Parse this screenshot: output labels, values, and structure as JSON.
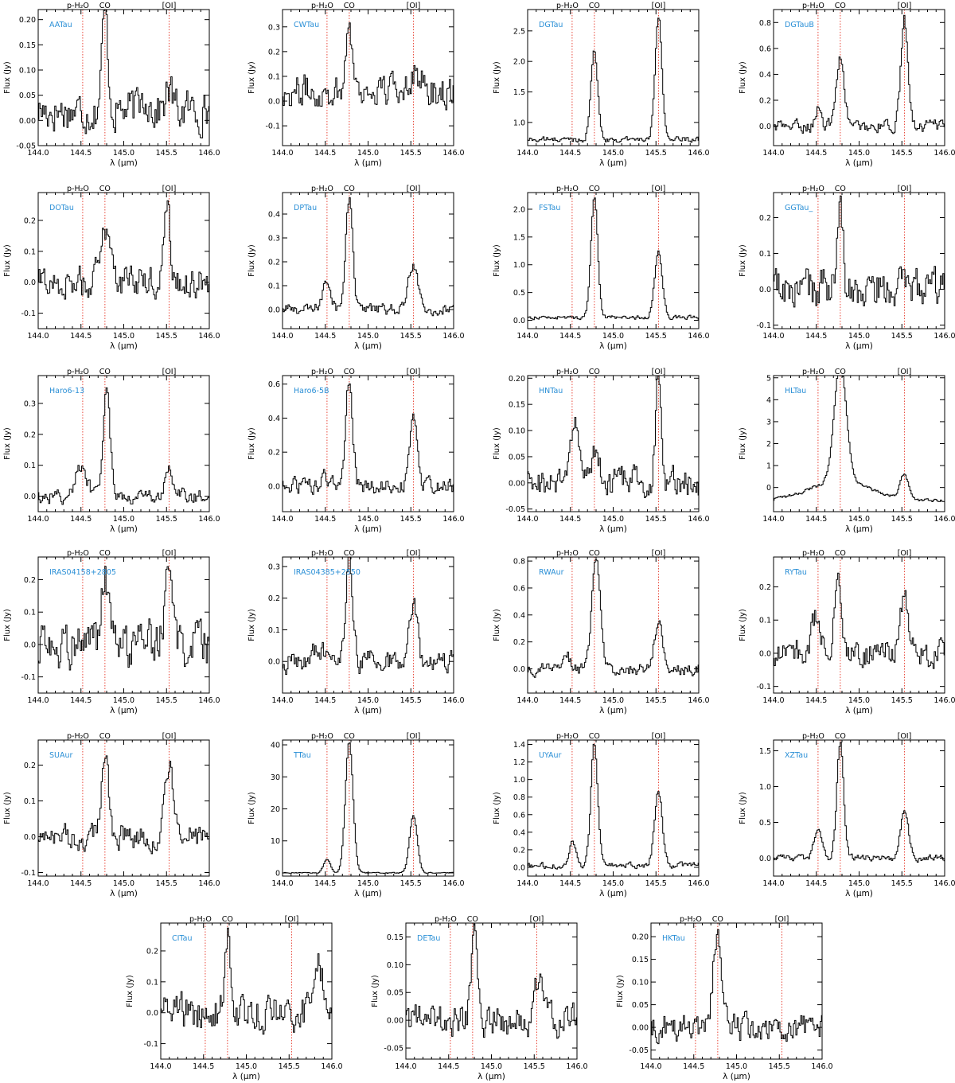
{
  "figure": {
    "line_labels": [
      {
        "id": "ph2o",
        "text": "p-H₂O",
        "x": 144.52
      },
      {
        "id": "co",
        "text": "CO",
        "x": 144.78
      },
      {
        "id": "oi",
        "text": "[OI]",
        "x": 145.53
      }
    ],
    "x_axis_label": "λ (μm)",
    "y_axis_label": "Flux (Jy)",
    "x_ticks": [
      "144.0",
      "144.5",
      "145.0",
      "145.5",
      "146.0"
    ],
    "colors": {
      "spectrum": "#000000",
      "line_marker": "#e8483a",
      "star_label": "#2a8fd6",
      "frame": "#000000"
    }
  },
  "chart_data": [
    {
      "type": "line",
      "name": "AATau",
      "xlim": [
        144.0,
        146.0
      ],
      "ylim": [
        -0.05,
        0.22
      ],
      "yticks": [
        -0.05,
        0.0,
        0.05,
        0.1,
        0.15,
        0.2
      ],
      "ytick_labels": [
        "-0.05",
        "0.00",
        "0.05",
        "0.10",
        "0.15",
        "0.20"
      ],
      "baseline": 0.02,
      "noise": 0.035,
      "peaks": [
        {
          "x": 144.78,
          "amp": 0.19,
          "w": 0.035
        },
        {
          "x": 145.53,
          "amp": 0.04,
          "w": 0.04
        },
        {
          "x": 145.25,
          "amp": 0.03,
          "w": 0.05
        }
      ]
    },
    {
      "type": "line",
      "name": "CWTau",
      "xlim": [
        144.0,
        146.0
      ],
      "ylim": [
        -0.18,
        0.37
      ],
      "yticks": [
        -0.1,
        0.0,
        0.1,
        0.2,
        0.3
      ],
      "ytick_labels": [
        "-0.1",
        "0.0",
        "0.1",
        "0.2",
        "0.3"
      ],
      "baseline": 0.04,
      "noise": 0.06,
      "peaks": [
        {
          "x": 144.78,
          "amp": 0.3,
          "w": 0.035
        },
        {
          "x": 145.53,
          "amp": 0.08,
          "w": 0.08
        }
      ]
    },
    {
      "type": "line",
      "name": "DGTau",
      "xlim": [
        144.0,
        146.0
      ],
      "ylim": [
        0.62,
        2.85
      ],
      "yticks": [
        1.0,
        1.5,
        2.0,
        2.5
      ],
      "ytick_labels": [
        "1.0",
        "1.5",
        "2.0",
        "2.5"
      ],
      "baseline": 0.72,
      "noise": 0.04,
      "peaks": [
        {
          "x": 144.78,
          "amp": 1.45,
          "w": 0.04
        },
        {
          "x": 145.53,
          "amp": 2.05,
          "w": 0.04
        }
      ]
    },
    {
      "type": "line",
      "name": "DGTauB",
      "xlim": [
        144.0,
        146.0
      ],
      "ylim": [
        -0.15,
        0.9
      ],
      "yticks": [
        0.0,
        0.2,
        0.4,
        0.6,
        0.8
      ],
      "ytick_labels": [
        "0.0",
        "0.2",
        "0.4",
        "0.6",
        "0.8"
      ],
      "baseline": 0.0,
      "noise": 0.04,
      "peaks": [
        {
          "x": 144.52,
          "amp": 0.15,
          "w": 0.03
        },
        {
          "x": 144.78,
          "amp": 0.55,
          "w": 0.045
        },
        {
          "x": 145.53,
          "amp": 0.82,
          "w": 0.04
        }
      ]
    },
    {
      "type": "line",
      "name": "DOTau",
      "xlim": [
        144.0,
        146.0
      ],
      "ylim": [
        -0.15,
        0.29
      ],
      "yticks": [
        -0.1,
        0.0,
        0.1,
        0.2
      ],
      "ytick_labels": [
        "-0.1",
        "0.0",
        "0.1",
        "0.2"
      ],
      "baseline": 0.0,
      "noise": 0.045,
      "peaks": [
        {
          "x": 144.8,
          "amp": 0.18,
          "w": 0.06
        },
        {
          "x": 145.5,
          "amp": 0.26,
          "w": 0.04
        }
      ]
    },
    {
      "type": "line",
      "name": "DPTau",
      "xlim": [
        144.0,
        146.0
      ],
      "ylim": [
        -0.08,
        0.49
      ],
      "yticks": [
        0.0,
        0.1,
        0.2,
        0.3,
        0.4
      ],
      "ytick_labels": [
        "0.0",
        "0.1",
        "0.2",
        "0.3",
        "0.4"
      ],
      "baseline": 0.0,
      "noise": 0.02,
      "peaks": [
        {
          "x": 144.52,
          "amp": 0.12,
          "w": 0.05
        },
        {
          "x": 144.78,
          "amp": 0.46,
          "w": 0.04
        },
        {
          "x": 145.53,
          "amp": 0.18,
          "w": 0.06
        }
      ]
    },
    {
      "type": "line",
      "name": "FSTau",
      "xlim": [
        144.0,
        146.0
      ],
      "ylim": [
        -0.15,
        2.3
      ],
      "yticks": [
        0.0,
        0.5,
        1.0,
        1.5,
        2.0
      ],
      "ytick_labels": [
        "0.0",
        "0.5",
        "1.0",
        "1.5",
        "2.0"
      ],
      "baseline": 0.05,
      "noise": 0.03,
      "peaks": [
        {
          "x": 144.78,
          "amp": 2.15,
          "w": 0.04
        },
        {
          "x": 145.53,
          "amp": 1.18,
          "w": 0.045
        }
      ]
    },
    {
      "type": "line",
      "name": "GGTau_",
      "xlim": [
        144.0,
        146.0
      ],
      "ylim": [
        -0.11,
        0.27
      ],
      "yticks": [
        -0.1,
        0.0,
        0.1,
        0.2
      ],
      "ytick_labels": [
        "-0.1",
        "0.0",
        "0.1",
        "0.2"
      ],
      "baseline": 0.0,
      "noise": 0.05,
      "peaks": [
        {
          "x": 144.78,
          "amp": 0.25,
          "w": 0.03
        }
      ]
    },
    {
      "type": "line",
      "name": "Haro6-13",
      "xlim": [
        144.0,
        146.0
      ],
      "ylim": [
        -0.05,
        0.39
      ],
      "yticks": [
        0.0,
        0.1,
        0.2,
        0.3
      ],
      "ytick_labels": [
        "0.0",
        "0.1",
        "0.2",
        "0.3"
      ],
      "baseline": 0.0,
      "noise": 0.02,
      "peaks": [
        {
          "x": 144.5,
          "amp": 0.09,
          "w": 0.07
        },
        {
          "x": 144.8,
          "amp": 0.36,
          "w": 0.04
        },
        {
          "x": 145.53,
          "amp": 0.09,
          "w": 0.04
        }
      ]
    },
    {
      "type": "line",
      "name": "Haro6-5B",
      "xlim": [
        144.0,
        146.0
      ],
      "ylim": [
        -0.15,
        0.65
      ],
      "yticks": [
        0.0,
        0.2,
        0.4,
        0.6
      ],
      "ytick_labels": [
        "0.0",
        "0.2",
        "0.4",
        "0.6"
      ],
      "baseline": 0.0,
      "noise": 0.04,
      "peaks": [
        {
          "x": 144.52,
          "amp": 0.05,
          "w": 0.05
        },
        {
          "x": 144.78,
          "amp": 0.63,
          "w": 0.04
        },
        {
          "x": 145.53,
          "amp": 0.4,
          "w": 0.04
        }
      ]
    },
    {
      "type": "line",
      "name": "HNTau",
      "xlim": [
        144.0,
        146.0
      ],
      "ylim": [
        -0.055,
        0.205
      ],
      "yticks": [
        -0.05,
        0.0,
        0.05,
        0.1,
        0.15,
        0.2
      ],
      "ytick_labels": [
        "-0.05",
        "0.00",
        "0.05",
        "0.10",
        "0.15",
        "0.20"
      ],
      "baseline": 0.0,
      "noise": 0.025,
      "peaks": [
        {
          "x": 144.55,
          "amp": 0.12,
          "w": 0.04
        },
        {
          "x": 144.78,
          "amp": 0.06,
          "w": 0.05
        },
        {
          "x": 145.53,
          "amp": 0.19,
          "w": 0.035
        }
      ]
    },
    {
      "type": "line",
      "name": "HLTau",
      "xlim": [
        144.0,
        146.0
      ],
      "ylim": [
        -1.1,
        5.1
      ],
      "yticks": [
        0,
        1,
        2,
        3,
        4,
        5
      ],
      "ytick_labels": [
        "0",
        "1",
        "2",
        "3",
        "4",
        "5"
      ],
      "baseline": -0.6,
      "noise": 0.06,
      "peaks": [
        {
          "x": 144.78,
          "amp": 5.4,
          "w": 0.07
        },
        {
          "x": 144.78,
          "amp": 0.9,
          "w": 0.35
        },
        {
          "x": 145.53,
          "amp": 1.1,
          "w": 0.05
        }
      ]
    },
    {
      "type": "line",
      "name": "IRAS04158+2805",
      "xlim": [
        144.0,
        146.0
      ],
      "ylim": [
        -0.15,
        0.27
      ],
      "yticks": [
        -0.1,
        0.0,
        0.1,
        0.2
      ],
      "ytick_labels": [
        "-0.1",
        "0.0",
        "0.1",
        "0.2"
      ],
      "baseline": 0.0,
      "noise": 0.06,
      "peaks": [
        {
          "x": 144.78,
          "amp": 0.21,
          "w": 0.04
        },
        {
          "x": 145.53,
          "amp": 0.2,
          "w": 0.05
        }
      ]
    },
    {
      "type": "line",
      "name": "IRAS04385+2550",
      "xlim": [
        144.0,
        146.0
      ],
      "ylim": [
        -0.1,
        0.33
      ],
      "yticks": [
        0.0,
        0.1,
        0.2,
        0.3
      ],
      "ytick_labels": [
        "0.0",
        "0.1",
        "0.2",
        "0.3"
      ],
      "baseline": 0.0,
      "noise": 0.03,
      "peaks": [
        {
          "x": 144.42,
          "amp": 0.05,
          "w": 0.05
        },
        {
          "x": 144.78,
          "amp": 0.31,
          "w": 0.04
        },
        {
          "x": 145.53,
          "amp": 0.2,
          "w": 0.045
        }
      ]
    },
    {
      "type": "line",
      "name": "RWAur",
      "xlim": [
        144.0,
        146.0
      ],
      "ylim": [
        -0.18,
        0.83
      ],
      "yticks": [
        0.0,
        0.2,
        0.4,
        0.6,
        0.8
      ],
      "ytick_labels": [
        "0.0",
        "0.2",
        "0.4",
        "0.6",
        "0.8"
      ],
      "baseline": 0.0,
      "noise": 0.04,
      "peaks": [
        {
          "x": 144.45,
          "amp": 0.1,
          "w": 0.05
        },
        {
          "x": 144.8,
          "amp": 0.8,
          "w": 0.05
        },
        {
          "x": 145.53,
          "amp": 0.35,
          "w": 0.05
        }
      ]
    },
    {
      "type": "line",
      "name": "RYTau",
      "xlim": [
        144.0,
        146.0
      ],
      "ylim": [
        -0.12,
        0.29
      ],
      "yticks": [
        -0.1,
        0.0,
        0.1,
        0.2
      ],
      "ytick_labels": [
        "-0.1",
        "0.0",
        "0.1",
        "0.2"
      ],
      "baseline": 0.0,
      "noise": 0.035,
      "peaks": [
        {
          "x": 144.5,
          "amp": 0.12,
          "w": 0.05
        },
        {
          "x": 144.75,
          "amp": 0.26,
          "w": 0.035
        },
        {
          "x": 145.53,
          "amp": 0.17,
          "w": 0.04
        }
      ]
    },
    {
      "type": "line",
      "name": "SUAur",
      "xlim": [
        144.0,
        146.0
      ],
      "ylim": [
        -0.11,
        0.27
      ],
      "yticks": [
        -0.1,
        0.0,
        0.1,
        0.2
      ],
      "ytick_labels": [
        "-0.1",
        "0.0",
        "0.1",
        "0.2"
      ],
      "baseline": 0.0,
      "noise": 0.03,
      "peaks": [
        {
          "x": 144.78,
          "amp": 0.24,
          "w": 0.04
        },
        {
          "x": 145.53,
          "amp": 0.2,
          "w": 0.045
        }
      ]
    },
    {
      "type": "line",
      "name": "TTau",
      "xlim": [
        144.0,
        146.0
      ],
      "ylim": [
        -1.0,
        41.5
      ],
      "yticks": [
        0,
        10,
        20,
        30,
        40
      ],
      "ytick_labels": [
        "0",
        "10",
        "20",
        "30",
        "40"
      ],
      "baseline": 0.0,
      "noise": 0.15,
      "peaks": [
        {
          "x": 144.52,
          "amp": 4.2,
          "w": 0.04
        },
        {
          "x": 144.78,
          "amp": 41,
          "w": 0.045
        },
        {
          "x": 145.53,
          "amp": 18,
          "w": 0.045
        }
      ]
    },
    {
      "type": "line",
      "name": "UYAur",
      "xlim": [
        144.0,
        146.0
      ],
      "ylim": [
        -0.1,
        1.45
      ],
      "yticks": [
        0.0,
        0.2,
        0.4,
        0.6,
        0.8,
        1.0,
        1.2,
        1.4
      ],
      "ytick_labels": [
        "0.0",
        "0.2",
        "0.4",
        "0.6",
        "0.8",
        "1.0",
        "1.2",
        "1.4"
      ],
      "baseline": 0.02,
      "noise": 0.03,
      "peaks": [
        {
          "x": 144.52,
          "amp": 0.25,
          "w": 0.04
        },
        {
          "x": 144.78,
          "amp": 1.4,
          "w": 0.04
        },
        {
          "x": 145.53,
          "amp": 0.85,
          "w": 0.045
        }
      ]
    },
    {
      "type": "line",
      "name": "XZTau",
      "xlim": [
        144.0,
        146.0
      ],
      "ylim": [
        -0.25,
        1.65
      ],
      "yticks": [
        0.0,
        0.5,
        1.0,
        1.5
      ],
      "ytick_labels": [
        "0.0",
        "0.5",
        "1.0",
        "1.5"
      ],
      "baseline": 0.0,
      "noise": 0.04,
      "peaks": [
        {
          "x": 144.52,
          "amp": 0.45,
          "w": 0.045
        },
        {
          "x": 144.78,
          "amp": 1.6,
          "w": 0.04
        },
        {
          "x": 145.53,
          "amp": 0.7,
          "w": 0.045
        }
      ]
    },
    {
      "type": "line",
      "name": "CITau",
      "xlim": [
        144.0,
        146.0
      ],
      "ylim": [
        -0.15,
        0.29
      ],
      "yticks": [
        -0.1,
        0.0,
        0.1,
        0.2
      ],
      "ytick_labels": [
        "-0.1",
        "0.0",
        "0.1",
        "0.2"
      ],
      "baseline": 0.0,
      "noise": 0.05,
      "peaks": [
        {
          "x": 144.78,
          "amp": 0.27,
          "w": 0.035
        },
        {
          "x": 145.85,
          "amp": 0.18,
          "w": 0.05
        }
      ]
    },
    {
      "type": "line",
      "name": "DETau",
      "xlim": [
        144.0,
        146.0
      ],
      "ylim": [
        -0.07,
        0.175
      ],
      "yticks": [
        -0.05,
        0.0,
        0.05,
        0.1,
        0.15
      ],
      "ytick_labels": [
        "-0.05",
        "0.00",
        "0.05",
        "0.10",
        "0.15"
      ],
      "baseline": 0.0,
      "noise": 0.025,
      "peaks": [
        {
          "x": 144.8,
          "amp": 0.15,
          "w": 0.035
        },
        {
          "x": 145.55,
          "amp": 0.07,
          "w": 0.05
        }
      ]
    },
    {
      "type": "line",
      "name": "HKTau",
      "xlim": [
        144.0,
        146.0
      ],
      "ylim": [
        -0.07,
        0.23
      ],
      "yticks": [
        -0.05,
        0.0,
        0.05,
        0.1,
        0.15,
        0.2
      ],
      "ytick_labels": [
        "-0.05",
        "0.00",
        "0.05",
        "0.10",
        "0.15",
        "0.20"
      ],
      "baseline": 0.0,
      "noise": 0.025,
      "peaks": [
        {
          "x": 144.78,
          "amp": 0.22,
          "w": 0.05
        }
      ]
    }
  ]
}
